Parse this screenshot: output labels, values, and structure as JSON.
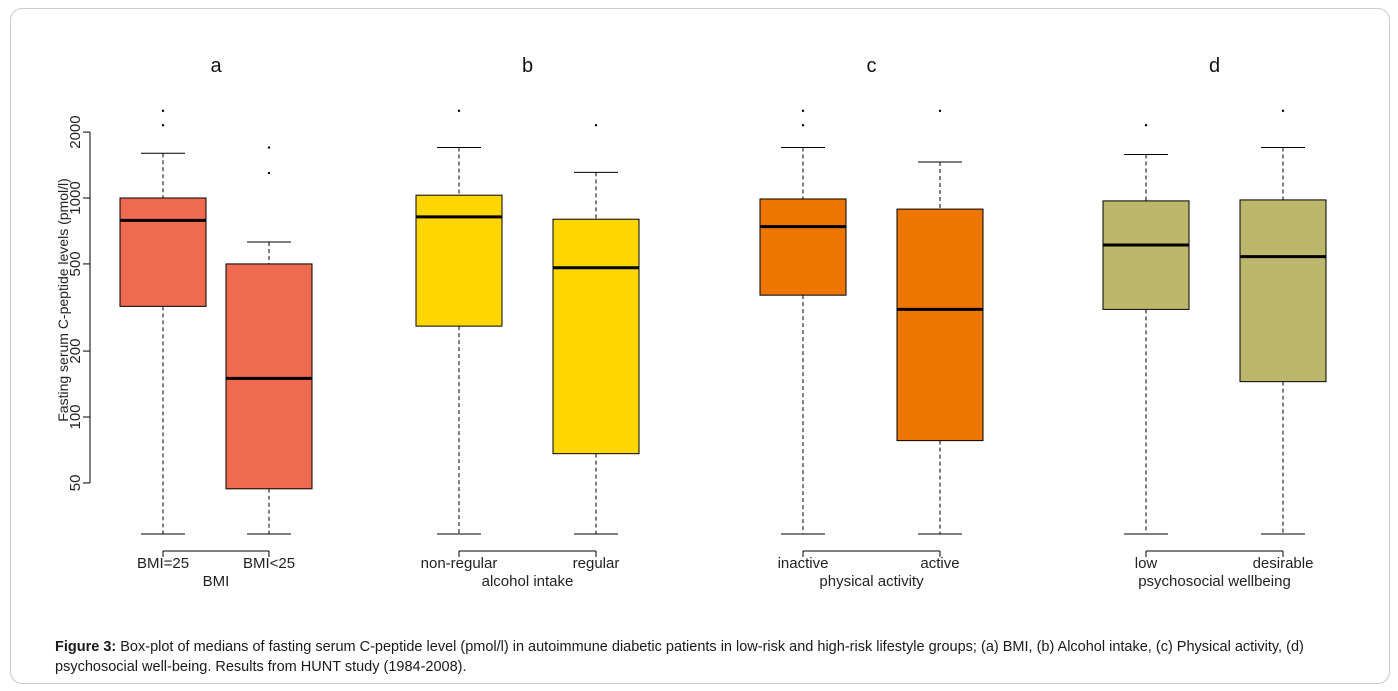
{
  "figure": {
    "caption_label": "Figure 3:",
    "caption_text": "Box-plot of medians of fasting serum C-peptide level (pmol/l) in autoimmune diabetic patients in low-risk and high-risk lifestyle groups; (a) BMI, (b) Alcohol intake, (c) Physical activity, (d) psychosocial well-being. Results from HUNT study (1984-2008)."
  },
  "chart_data": {
    "type": "box",
    "ylabel": "Fasting serum C-peptide levels (pmol/l)",
    "yscale": "log",
    "ylim": [
      30,
      2600
    ],
    "yticks": [
      50,
      100,
      200,
      500,
      1000,
      2000
    ],
    "whisker_style": "dashed",
    "grid": false,
    "panels": [
      {
        "label": "a",
        "xlabel": "BMI",
        "color": "#EE6A50",
        "groups": [
          {
            "name": "BMI=25",
            "whisker_low": 28,
            "q1": 320,
            "median": 790,
            "q3": 1000,
            "whisker_high": 1600,
            "outliers": [
              2150,
              2500
            ]
          },
          {
            "name": "BMI<25",
            "whisker_low": 28,
            "q1": 47,
            "median": 150,
            "q3": 500,
            "whisker_high": 630,
            "outliers": [
              1300,
              1700
            ]
          }
        ]
      },
      {
        "label": "b",
        "xlabel": "alcohol intake",
        "color": "#FFD700",
        "groups": [
          {
            "name": "non-regular",
            "whisker_low": 28,
            "q1": 260,
            "median": 820,
            "q3": 1030,
            "whisker_high": 1700,
            "outliers": [
              2500
            ]
          },
          {
            "name": "regular",
            "whisker_low": 28,
            "q1": 68,
            "median": 480,
            "q3": 800,
            "whisker_high": 1310,
            "outliers": [
              2150
            ]
          }
        ]
      },
      {
        "label": "c",
        "xlabel": "physical activity",
        "color": "#EE7600",
        "groups": [
          {
            "name": "inactive",
            "whisker_low": 28,
            "q1": 360,
            "median": 740,
            "q3": 990,
            "whisker_high": 1700,
            "outliers": [
              2150,
              2500
            ]
          },
          {
            "name": "active",
            "whisker_low": 28,
            "q1": 78,
            "median": 310,
            "q3": 890,
            "whisker_high": 1460,
            "outliers": [
              2500
            ]
          }
        ]
      },
      {
        "label": "d",
        "xlabel": "psychosocial wellbeing",
        "color": "#BDB76B",
        "groups": [
          {
            "name": "low",
            "whisker_low": 28,
            "q1": 310,
            "median": 610,
            "q3": 970,
            "whisker_high": 1580,
            "outliers": [
              2150
            ]
          },
          {
            "name": "desirable",
            "whisker_low": 28,
            "q1": 145,
            "median": 540,
            "q3": 980,
            "whisker_high": 1700,
            "outliers": [
              2500
            ]
          }
        ]
      }
    ]
  }
}
